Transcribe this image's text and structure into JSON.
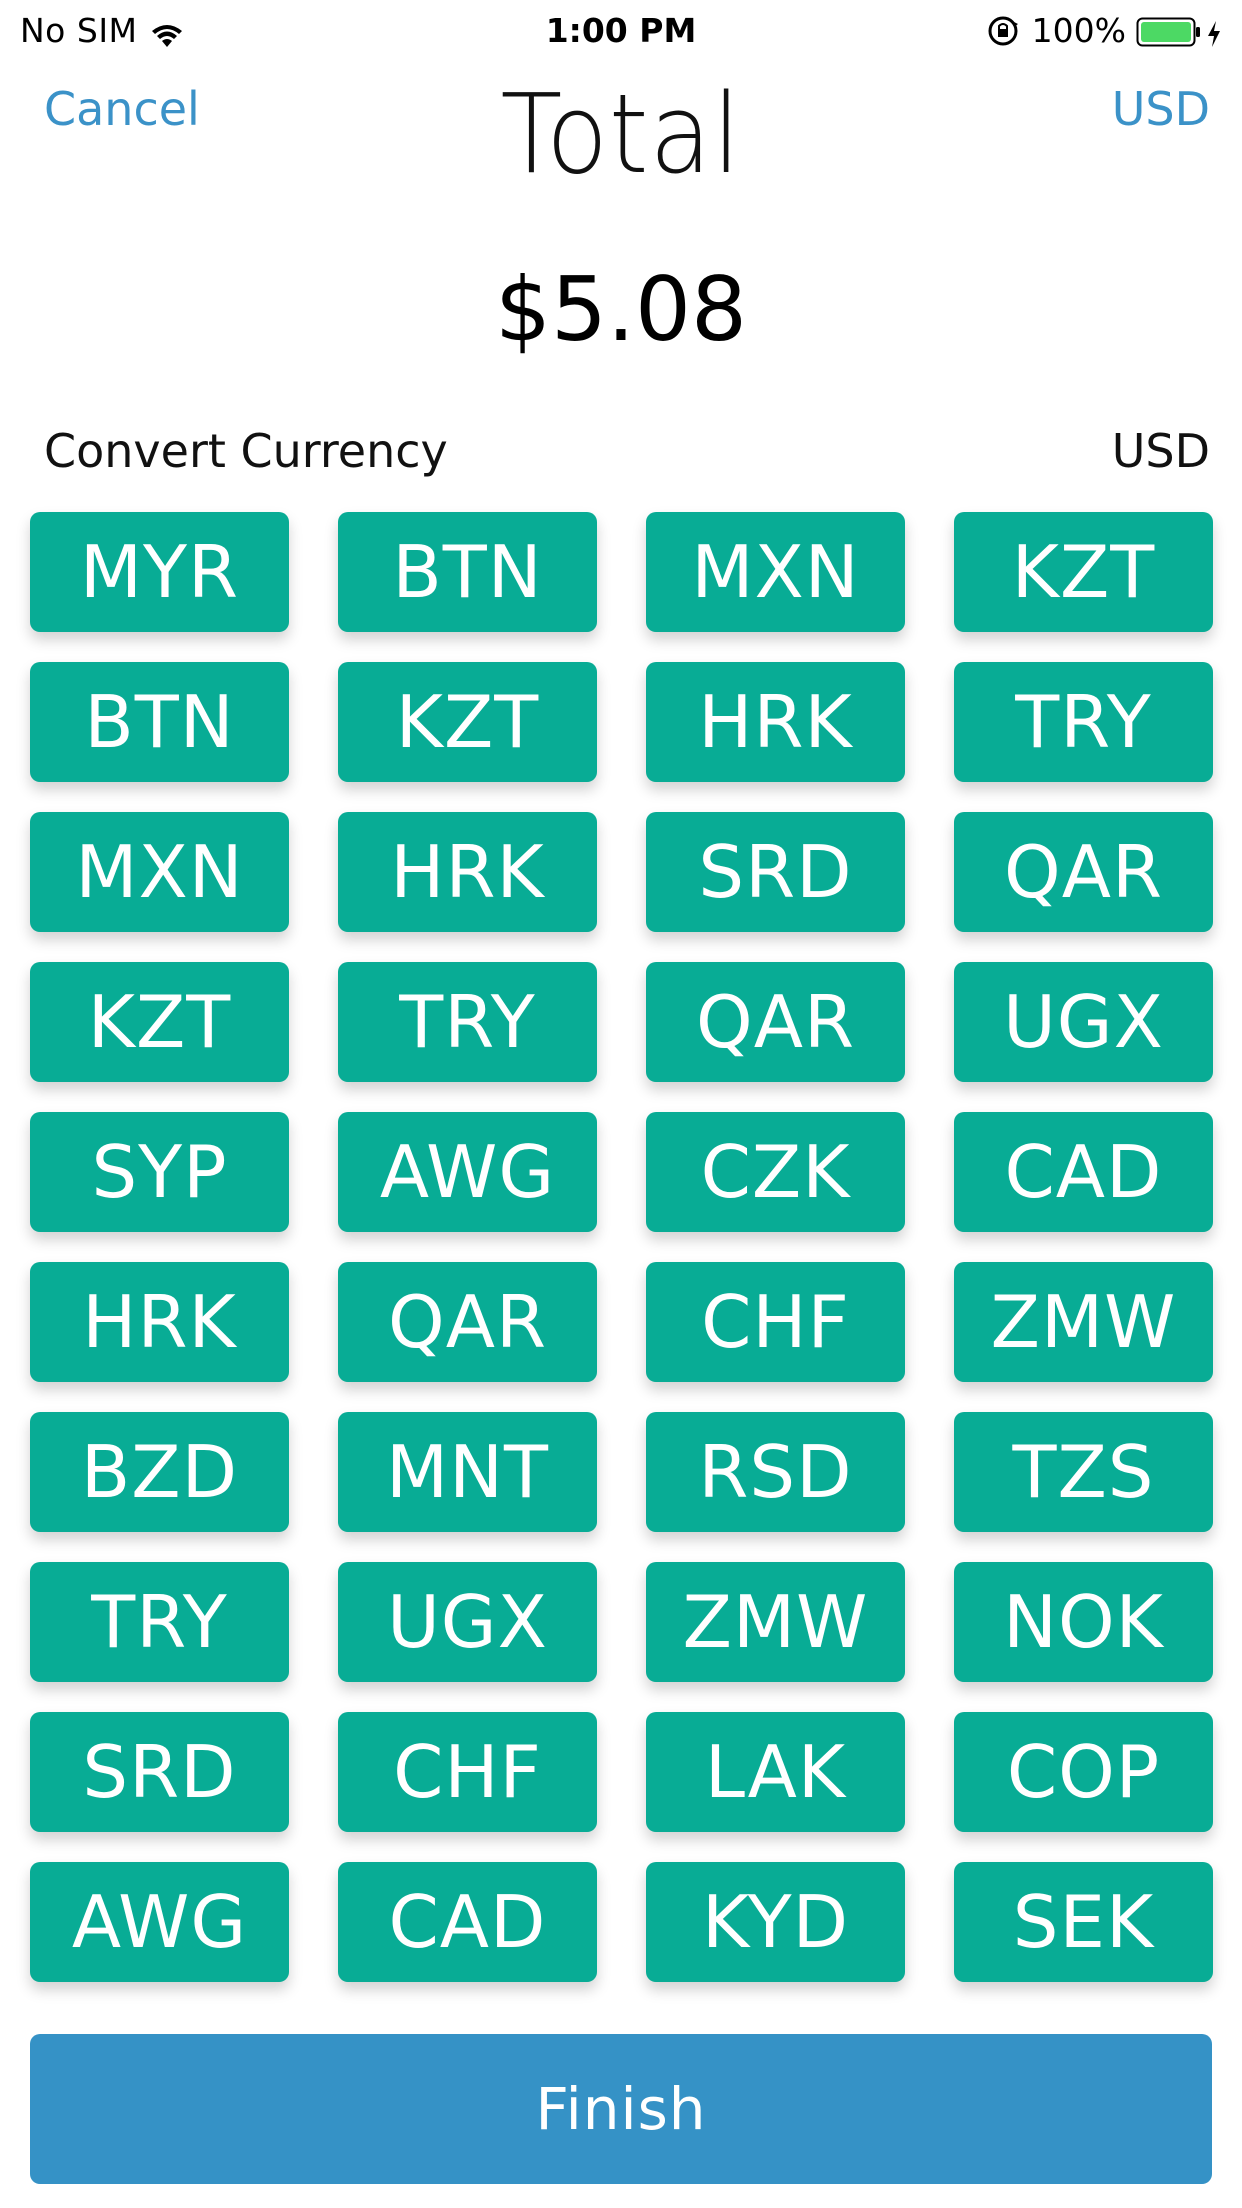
{
  "status_bar": {
    "carrier": "No SIM",
    "time": "1:00 PM",
    "battery": "100%",
    "icons": [
      "wifi-icon",
      "orientation-lock-icon",
      "battery-icon",
      "charging-bolt-icon"
    ]
  },
  "nav": {
    "cancel_label": "Cancel",
    "title": "Total",
    "currency_label": "USD"
  },
  "total": {
    "amount": "$5.08"
  },
  "convert": {
    "label": "Convert Currency",
    "current": "USD"
  },
  "currencies": [
    "MYR",
    "BTN",
    "MXN",
    "KZT",
    "BTN",
    "KZT",
    "HRK",
    "TRY",
    "MXN",
    "HRK",
    "SRD",
    "QAR",
    "KZT",
    "TRY",
    "QAR",
    "UGX",
    "SYP",
    "AWG",
    "CZK",
    "CAD",
    "HRK",
    "QAR",
    "CHF",
    "ZMW",
    "BZD",
    "MNT",
    "RSD",
    "TZS",
    "TRY",
    "UGX",
    "ZMW",
    "NOK",
    "SRD",
    "CHF",
    "LAK",
    "COP",
    "AWG",
    "CAD",
    "KYD",
    "SEK"
  ],
  "finish_label": "Finish",
  "colors": {
    "accent_blue": "#3b92c8",
    "currency_button": "#08ac95",
    "finish_button": "#3592c6",
    "battery_green": "#4cd964"
  }
}
